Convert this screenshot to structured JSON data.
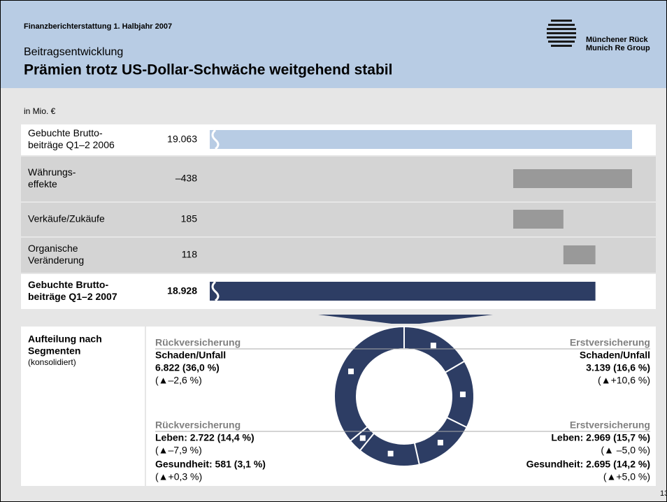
{
  "header": {
    "report": "Finanzberichterstattung 1. Halbjahr 2007",
    "section": "Beitragsentwicklung",
    "title": "Prämien trotz US-Dollar-Schwäche weitgehend stabil",
    "logo": [
      "Münchener Rück",
      "Munich Re Group"
    ]
  },
  "chart_data": {
    "type": "waterfall",
    "unit": "in Mio. €",
    "categories": [
      [
        "Gebuchte Brutto-",
        "beiträge Q1–2 2006"
      ],
      [
        "Währungs-",
        "effekte"
      ],
      [
        "Verkäufe/Zukäufe"
      ],
      [
        "Organische",
        "Veränderung"
      ],
      [
        "Gebuchte Brutto-",
        "beiträge Q1–2 2007"
      ]
    ],
    "values": [
      19063,
      -438,
      185,
      118,
      18928
    ],
    "value_labels": [
      "19.063",
      "–438",
      "185",
      "118",
      "18.928"
    ],
    "colors": [
      "#b8cce4",
      "#999999",
      "#999999",
      "#999999",
      "#2d3d64"
    ]
  },
  "segments": {
    "title": [
      "Aufteilung nach",
      "Segmenten"
    ],
    "subtitle": "(konsolidiert)",
    "color": "#2d3d64",
    "blocks": [
      {
        "heading": "Rückversicherung",
        "items": [
          {
            "name": "Schaden/Unfall",
            "label": "6.822 (36,0 %)",
            "change": "(▲–2,6 %)",
            "share": 36.0
          }
        ]
      },
      {
        "heading": "Erstversicherung",
        "items": [
          {
            "name": "Schaden/Unfall",
            "label": "3.139 (16,6 %)",
            "change": "(▲+10,6 %)",
            "share": 16.6
          }
        ]
      },
      {
        "heading": "Rückversicherung",
        "items": [
          {
            "label": "Leben: 2.722 (14,4 %)",
            "change": "(▲–7,9 %)",
            "share": 14.4
          },
          {
            "label": "Gesundheit: 581 (3,1 %)",
            "change": "(▲+0,3 %)",
            "share": 3.1
          }
        ]
      },
      {
        "heading": "Erstversicherung",
        "items": [
          {
            "label": "Leben: 2.969 (15,7 %)",
            "change": "(▲ –5,0 %)",
            "share": 15.7
          },
          {
            "label": "Gesundheit: 2.695 (14,2 %)",
            "change": "(▲+5,0 %)",
            "share": 14.2
          }
        ]
      }
    ]
  },
  "page_number": "13"
}
